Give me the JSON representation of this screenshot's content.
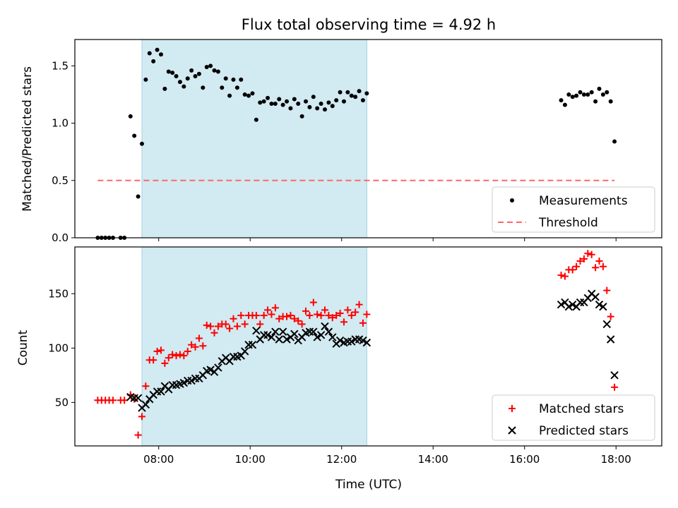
{
  "chart_data": [
    {
      "type": "scatter",
      "title": "Flux total observing time = 4.92 h",
      "xlabel": "",
      "ylabel": "Matched/Predicted stars",
      "xlim": [
        "06:10",
        "19:00"
      ],
      "ylim": [
        0,
        1.73
      ],
      "yticks": [
        0.0,
        0.5,
        1.0,
        1.5
      ],
      "ytick_labels": [
        "0.0",
        "0.5",
        "1.0",
        "1.5"
      ],
      "shaded_region": {
        "x": [
          "07:38",
          "12:33"
        ],
        "color": "#add8e6"
      },
      "legend": {
        "position": "lower-right",
        "entries": [
          "Measurements",
          "Threshold"
        ]
      },
      "series": [
        {
          "name": "Measurements",
          "marker": "dot",
          "color": "#000000",
          "points": [
            [
              "06:40",
              0
            ],
            [
              "06:45",
              0
            ],
            [
              "06:50",
              0
            ],
            [
              "06:55",
              0
            ],
            [
              "07:00",
              0
            ],
            [
              "07:10",
              0
            ],
            [
              "07:15",
              0
            ],
            [
              "07:23",
              1.06
            ],
            [
              "07:28",
              0.89
            ],
            [
              "07:33",
              0.36
            ],
            [
              "07:38",
              0.82
            ],
            [
              "07:43",
              1.38
            ],
            [
              "07:48",
              1.61
            ],
            [
              "07:53",
              1.54
            ],
            [
              "07:58",
              1.64
            ],
            [
              "08:03",
              1.6
            ],
            [
              "08:08",
              1.3
            ],
            [
              "08:13",
              1.45
            ],
            [
              "08:18",
              1.44
            ],
            [
              "08:23",
              1.41
            ],
            [
              "08:28",
              1.36
            ],
            [
              "08:33",
              1.32
            ],
            [
              "08:38",
              1.39
            ],
            [
              "08:43",
              1.46
            ],
            [
              "08:48",
              1.41
            ],
            [
              "08:53",
              1.43
            ],
            [
              "08:58",
              1.31
            ],
            [
              "09:03",
              1.49
            ],
            [
              "09:08",
              1.5
            ],
            [
              "09:13",
              1.46
            ],
            [
              "09:18",
              1.45
            ],
            [
              "09:23",
              1.31
            ],
            [
              "09:28",
              1.39
            ],
            [
              "09:33",
              1.24
            ],
            [
              "09:38",
              1.38
            ],
            [
              "09:43",
              1.31
            ],
            [
              "09:48",
              1.38
            ],
            [
              "09:53",
              1.25
            ],
            [
              "09:58",
              1.24
            ],
            [
              "10:03",
              1.26
            ],
            [
              "10:08",
              1.03
            ],
            [
              "10:13",
              1.18
            ],
            [
              "10:18",
              1.19
            ],
            [
              "10:23",
              1.22
            ],
            [
              "10:28",
              1.17
            ],
            [
              "10:33",
              1.17
            ],
            [
              "10:38",
              1.21
            ],
            [
              "10:43",
              1.16
            ],
            [
              "10:48",
              1.19
            ],
            [
              "10:53",
              1.13
            ],
            [
              "10:58",
              1.21
            ],
            [
              "11:03",
              1.17
            ],
            [
              "11:08",
              1.06
            ],
            [
              "11:13",
              1.19
            ],
            [
              "11:18",
              1.14
            ],
            [
              "11:23",
              1.23
            ],
            [
              "11:28",
              1.13
            ],
            [
              "11:33",
              1.17
            ],
            [
              "11:38",
              1.12
            ],
            [
              "11:43",
              1.18
            ],
            [
              "11:48",
              1.15
            ],
            [
              "11:53",
              1.2
            ],
            [
              "11:58",
              1.27
            ],
            [
              "12:03",
              1.19
            ],
            [
              "12:08",
              1.27
            ],
            [
              "12:13",
              1.24
            ],
            [
              "12:18",
              1.23
            ],
            [
              "12:23",
              1.28
            ],
            [
              "12:28",
              1.2
            ],
            [
              "12:33",
              1.26
            ],
            [
              "16:48",
              1.2
            ],
            [
              "16:53",
              1.16
            ],
            [
              "16:58",
              1.25
            ],
            [
              "17:03",
              1.23
            ],
            [
              "17:08",
              1.24
            ],
            [
              "17:13",
              1.27
            ],
            [
              "17:18",
              1.25
            ],
            [
              "17:23",
              1.25
            ],
            [
              "17:28",
              1.27
            ],
            [
              "17:33",
              1.19
            ],
            [
              "17:38",
              1.3
            ],
            [
              "17:43",
              1.25
            ],
            [
              "17:48",
              1.27
            ],
            [
              "17:53",
              1.19
            ],
            [
              "17:58",
              0.84
            ]
          ]
        },
        {
          "name": "Threshold",
          "line": "dashed",
          "color": "#ff6666",
          "points": [
            [
              "06:40",
              0.5
            ],
            [
              "17:58",
              0.5
            ]
          ]
        }
      ]
    },
    {
      "type": "scatter",
      "title": "",
      "xlabel": "Time (UTC)",
      "ylabel": "Count",
      "xlim": [
        "06:10",
        "19:00"
      ],
      "ylim": [
        10,
        193
      ],
      "yticks": [
        50,
        100,
        150
      ],
      "ytick_labels": [
        "50",
        "100",
        "150"
      ],
      "xticks": [
        "08:00",
        "10:00",
        "12:00",
        "14:00",
        "16:00",
        "18:00"
      ],
      "shaded_region": {
        "x": [
          "07:38",
          "12:33"
        ],
        "color": "#add8e6"
      },
      "legend": {
        "position": "lower-right",
        "entries": [
          "Matched stars",
          "Predicted stars"
        ]
      },
      "series": [
        {
          "name": "Matched stars",
          "marker": "plus",
          "color": "#ff0000",
          "points": [
            [
              "06:40",
              52
            ],
            [
              "06:45",
              52
            ],
            [
              "06:50",
              52
            ],
            [
              "06:55",
              52
            ],
            [
              "07:00",
              52
            ],
            [
              "07:10",
              52
            ],
            [
              "07:15",
              52
            ],
            [
              "07:23",
              57
            ],
            [
              "07:28",
              53
            ],
            [
              "07:33",
              20
            ],
            [
              "07:38",
              37
            ],
            [
              "07:43",
              65
            ],
            [
              "07:48",
              89
            ],
            [
              "07:53",
              89
            ],
            [
              "07:58",
              97
            ],
            [
              "08:03",
              98
            ],
            [
              "08:08",
              86
            ],
            [
              "08:13",
              91
            ],
            [
              "08:18",
              94
            ],
            [
              "08:23",
              93
            ],
            [
              "08:28",
              94
            ],
            [
              "08:33",
              93
            ],
            [
              "08:38",
              97
            ],
            [
              "08:43",
              103
            ],
            [
              "08:48",
              101
            ],
            [
              "08:53",
              109
            ],
            [
              "08:58",
              102
            ],
            [
              "09:03",
              121
            ],
            [
              "09:08",
              120
            ],
            [
              "09:13",
              114
            ],
            [
              "09:18",
              120
            ],
            [
              "09:23",
              122
            ],
            [
              "09:28",
              122
            ],
            [
              "09:33",
              118
            ],
            [
              "09:38",
              127
            ],
            [
              "09:43",
              120
            ],
            [
              "09:48",
              130
            ],
            [
              "09:53",
              122
            ],
            [
              "09:58",
              130
            ],
            [
              "10:03",
              130
            ],
            [
              "10:08",
              130
            ],
            [
              "10:13",
              122
            ],
            [
              "10:18",
              130
            ],
            [
              "10:23",
              135
            ],
            [
              "10:28",
              131
            ],
            [
              "10:33",
              137
            ],
            [
              "10:38",
              127
            ],
            [
              "10:43",
              129
            ],
            [
              "10:48",
              129
            ],
            [
              "10:53",
              130
            ],
            [
              "10:58",
              127
            ],
            [
              "11:03",
              125
            ],
            [
              "11:08",
              122
            ],
            [
              "11:13",
              134
            ],
            [
              "11:18",
              130
            ],
            [
              "11:23",
              142
            ],
            [
              "11:28",
              131
            ],
            [
              "11:33",
              130
            ],
            [
              "11:38",
              135
            ],
            [
              "11:43",
              130
            ],
            [
              "11:48",
              128
            ],
            [
              "11:53",
              130
            ],
            [
              "11:58",
              132
            ],
            [
              "12:03",
              124
            ],
            [
              "12:08",
              135
            ],
            [
              "12:13",
              130
            ],
            [
              "12:18",
              133
            ],
            [
              "12:23",
              140
            ],
            [
              "12:28",
              123
            ],
            [
              "12:33",
              131
            ],
            [
              "16:48",
              167
            ],
            [
              "16:53",
              166
            ],
            [
              "16:58",
              172
            ],
            [
              "17:03",
              172
            ],
            [
              "17:08",
              175
            ],
            [
              "17:13",
              180
            ],
            [
              "17:18",
              182
            ],
            [
              "17:23",
              187
            ],
            [
              "17:28",
              186
            ],
            [
              "17:33",
              174
            ],
            [
              "17:38",
              180
            ],
            [
              "17:43",
              175
            ],
            [
              "17:48",
              153
            ],
            [
              "17:53",
              129
            ],
            [
              "17:58",
              64
            ]
          ]
        },
        {
          "name": "Predicted stars",
          "marker": "x",
          "color": "#000000",
          "points": [
            [
              "07:23",
              55
            ],
            [
              "07:28",
              54
            ],
            [
              "07:33",
              54
            ],
            [
              "07:38",
              45
            ],
            [
              "07:43",
              48
            ],
            [
              "07:48",
              53
            ],
            [
              "07:53",
              57
            ],
            [
              "07:58",
              60
            ],
            [
              "08:03",
              60
            ],
            [
              "08:08",
              65
            ],
            [
              "08:13",
              62
            ],
            [
              "08:18",
              66
            ],
            [
              "08:23",
              66
            ],
            [
              "08:28",
              67
            ],
            [
              "08:33",
              68
            ],
            [
              "08:38",
              70
            ],
            [
              "08:43",
              70
            ],
            [
              "08:48",
              72
            ],
            [
              "08:53",
              72
            ],
            [
              "08:58",
              75
            ],
            [
              "09:03",
              79
            ],
            [
              "09:08",
              80
            ],
            [
              "09:13",
              78
            ],
            [
              "09:18",
              82
            ],
            [
              "09:23",
              88
            ],
            [
              "09:28",
              91
            ],
            [
              "09:33",
              88
            ],
            [
              "09:38",
              92
            ],
            [
              "09:43",
              92
            ],
            [
              "09:48",
              93
            ],
            [
              "09:53",
              97
            ],
            [
              "09:58",
              103
            ],
            [
              "10:03",
              103
            ],
            [
              "10:08",
              116
            ],
            [
              "10:13",
              108
            ],
            [
              "10:18",
              112
            ],
            [
              "10:23",
              112
            ],
            [
              "10:28",
              110
            ],
            [
              "10:33",
              115
            ],
            [
              "10:38",
              108
            ],
            [
              "10:43",
              115
            ],
            [
              "10:48",
              108
            ],
            [
              "10:53",
              110
            ],
            [
              "10:58",
              113
            ],
            [
              "11:03",
              107
            ],
            [
              "11:08",
              110
            ],
            [
              "11:13",
              114
            ],
            [
              "11:18",
              115
            ],
            [
              "11:23",
              115
            ],
            [
              "11:28",
              110
            ],
            [
              "11:33",
              112
            ],
            [
              "11:38",
              120
            ],
            [
              "11:43",
              115
            ],
            [
              "11:48",
              110
            ],
            [
              "11:53",
              104
            ],
            [
              "11:58",
              107
            ],
            [
              "12:03",
              105
            ],
            [
              "12:08",
              106
            ],
            [
              "12:13",
              106
            ],
            [
              "12:18",
              108
            ],
            [
              "12:23",
              108
            ],
            [
              "12:28",
              107
            ],
            [
              "12:33",
              105
            ],
            [
              "16:48",
              140
            ],
            [
              "16:53",
              142
            ],
            [
              "16:58",
              138
            ],
            [
              "17:03",
              140
            ],
            [
              "17:08",
              138
            ],
            [
              "17:13",
              142
            ],
            [
              "17:18",
              142
            ],
            [
              "17:23",
              146
            ],
            [
              "17:28",
              150
            ],
            [
              "17:33",
              147
            ],
            [
              "17:38",
              140
            ],
            [
              "17:43",
              138
            ],
            [
              "17:48",
              122
            ],
            [
              "17:53",
              108
            ],
            [
              "17:58",
              75
            ]
          ]
        }
      ]
    }
  ]
}
